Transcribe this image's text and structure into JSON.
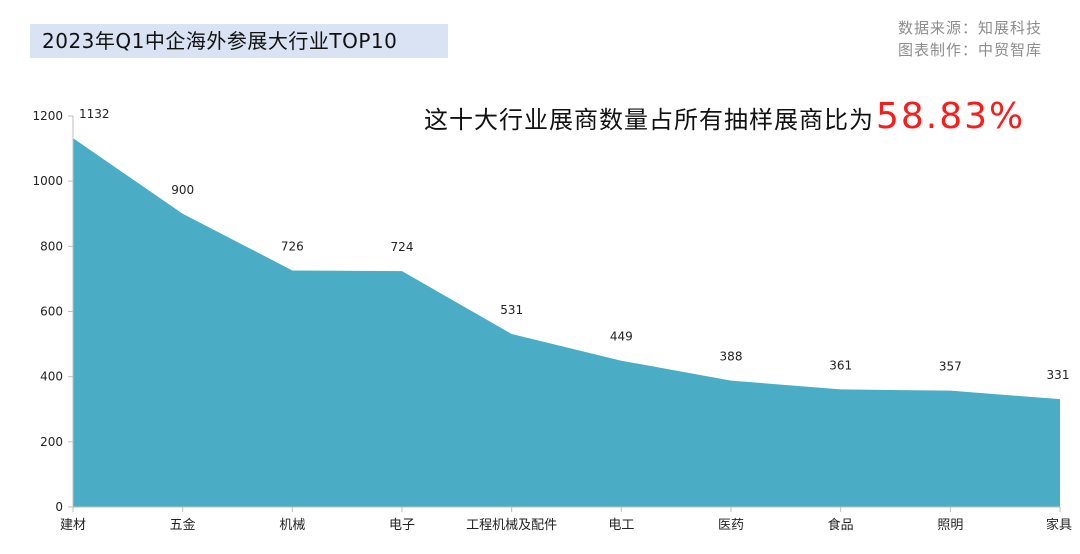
{
  "header": {
    "title": "2023年Q1中企海外参展大行业TOP10",
    "source_line1": "数据来源：知展科技",
    "source_line2": "图表制作：中贸智库"
  },
  "annotation": {
    "text": "这十大行业展商数量占所有抽样展商比为",
    "percent": "58.83%",
    "percent_color": "#ff1a1a"
  },
  "chart_data": {
    "type": "area",
    "categories": [
      "建材",
      "五金",
      "机械",
      "电子",
      "工程机械及配件",
      "电工",
      "医药",
      "食品",
      "照明",
      "家具"
    ],
    "values": [
      1132,
      900,
      726,
      724,
      531,
      449,
      388,
      361,
      357,
      331
    ],
    "ylim": [
      0,
      1200
    ],
    "yticks": [
      0,
      200,
      400,
      600,
      800,
      1000,
      1200
    ],
    "fill_color": "#4bacc6",
    "grid": false,
    "legend": "none"
  }
}
